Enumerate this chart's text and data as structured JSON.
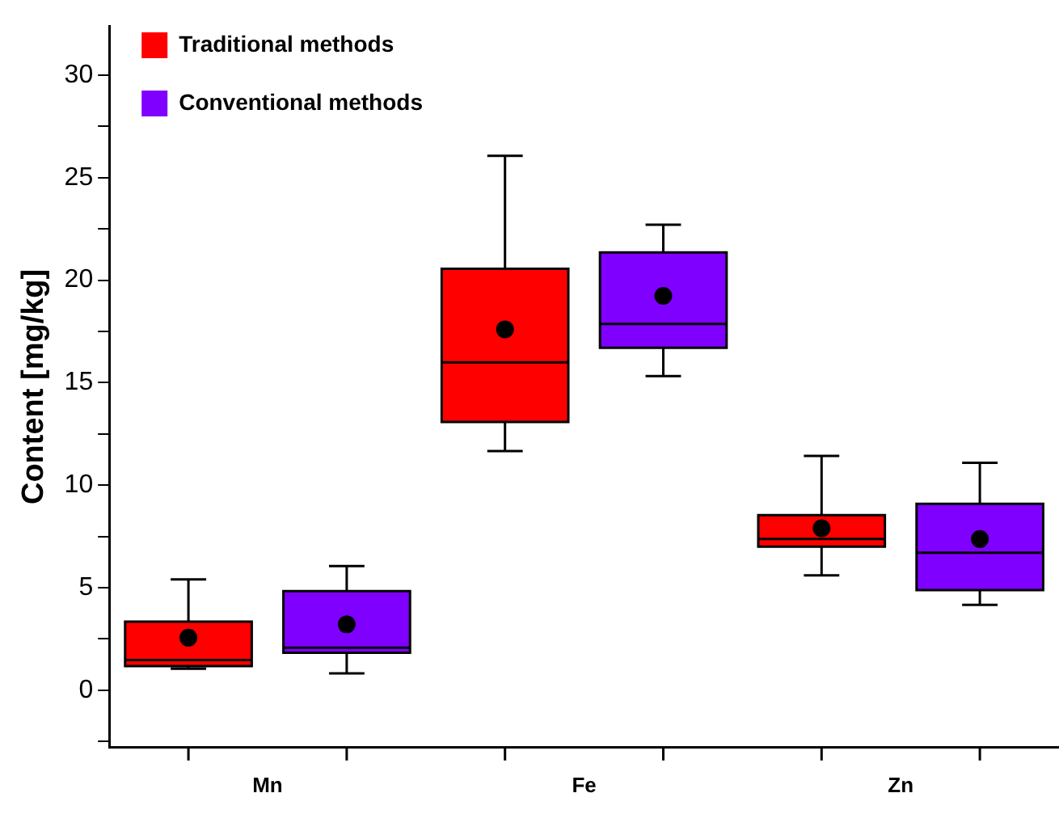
{
  "chart_data": {
    "type": "box",
    "ylabel": "Content [mg/kg]",
    "categories": [
      "Mn",
      "Fe",
      "Zn"
    ],
    "ylim": [
      -2.8,
      32.4
    ],
    "yticks": [
      {
        "value": -2.5,
        "label": null
      },
      0,
      {
        "value": 2.5,
        "label": null
      },
      5,
      {
        "value": 7.5,
        "label": null
      },
      10,
      {
        "value": 12.5,
        "label": null
      },
      15,
      {
        "value": 17.5,
        "label": null
      },
      20,
      {
        "value": 22.5,
        "label": null
      },
      25,
      {
        "value": 27.5,
        "label": null
      },
      30
    ],
    "legend": "top left",
    "grid": false,
    "series": [
      {
        "name": "Traditional methods",
        "color": "#ff0000",
        "boxes": [
          {
            "low": 1.05,
            "q1": 1.17,
            "median": 1.47,
            "q3": 3.34,
            "high": 5.4,
            "mean": 2.56
          },
          {
            "low": 11.66,
            "q1": 13.08,
            "median": 15.99,
            "q3": 20.55,
            "high": 26.06,
            "mean": 17.6
          },
          {
            "low": 5.6,
            "q1": 7.0,
            "median": 7.37,
            "q3": 8.54,
            "high": 11.43,
            "mean": 7.9
          }
        ]
      },
      {
        "name": "Conventional methods",
        "color": "#8000ff",
        "boxes": [
          {
            "low": 0.82,
            "q1": 1.82,
            "median": 2.07,
            "q3": 4.83,
            "high": 6.05,
            "mean": 3.21
          },
          {
            "low": 15.32,
            "q1": 16.7,
            "median": 17.86,
            "q3": 21.35,
            "high": 22.7,
            "mean": 19.23
          },
          {
            "low": 4.16,
            "q1": 4.88,
            "median": 6.7,
            "q3": 9.09,
            "high": 11.09,
            "mean": 7.37
          }
        ]
      }
    ]
  }
}
